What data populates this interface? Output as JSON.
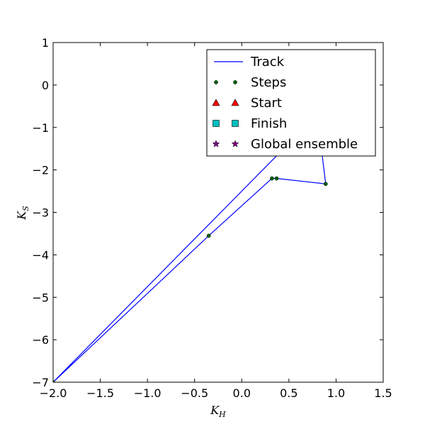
{
  "chart_data": {
    "type": "line",
    "title": "",
    "xlabel": "K",
    "xlabel_sub": "H",
    "ylabel": "K",
    "ylabel_sub": "S",
    "xlim": [
      -2.0,
      1.5
    ],
    "ylim": [
      -7,
      1
    ],
    "xticks": [
      -2.0,
      -1.5,
      -1.0,
      -0.5,
      0.0,
      0.5,
      1.0,
      1.5
    ],
    "xtick_labels": [
      "−2.0",
      "−1.5",
      "−1.0",
      "−0.5",
      "0.0",
      "0.5",
      "1.0",
      "1.5"
    ],
    "yticks": [
      1,
      0,
      -1,
      -2,
      -3,
      -4,
      -5,
      -6,
      -7
    ],
    "ytick_labels": [
      "1",
      "0",
      "−1",
      "−2",
      "−3",
      "−4",
      "−5",
      "−6",
      "−7"
    ],
    "grid": false,
    "legend_position": "top-right",
    "track": {
      "name": "Track",
      "color": "#0000ff",
      "x": [
        -2.0,
        -0.35,
        0.32,
        0.37,
        0.89,
        0.85,
        0.4,
        -2.0
      ],
      "y": [
        -7.0,
        -3.55,
        -2.2,
        -2.2,
        -2.33,
        -1.6,
        -1.6,
        -7.0
      ]
    },
    "steps": {
      "name": "Steps",
      "color": "#006400",
      "x": [
        -2.0,
        -0.35,
        0.32,
        0.37,
        0.89
      ],
      "y": [
        -7.0,
        -3.55,
        -2.2,
        -2.2,
        -2.33
      ]
    },
    "legend": [
      {
        "label": "Track",
        "marker": "line",
        "color": "#0000ff"
      },
      {
        "label": "Steps",
        "marker": "dot",
        "color": "#006400"
      },
      {
        "label": "Start",
        "marker": "triangle",
        "color": "#ff0000"
      },
      {
        "label": "Finish",
        "marker": "square",
        "color": "#00bfbf"
      },
      {
        "label": "Global ensemble",
        "marker": "star",
        "color": "#800080"
      }
    ]
  }
}
